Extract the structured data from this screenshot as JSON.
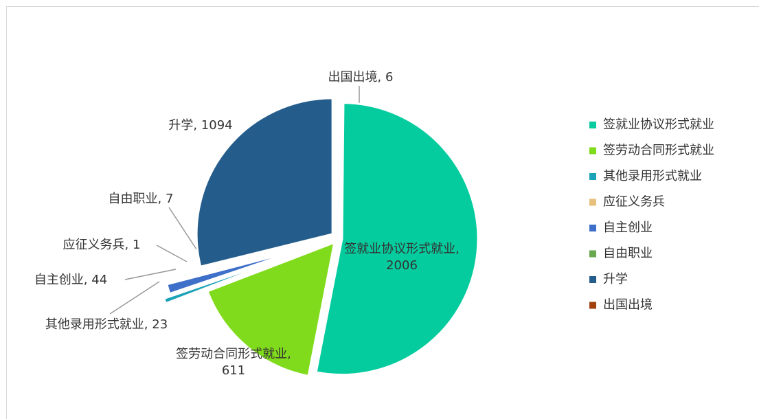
{
  "chart_data": {
    "type": "pie",
    "categories": [
      "签就业协议形式就业",
      "签劳动合同形式就业",
      "其他录用形式就业",
      "应征义务兵",
      "自主创业",
      "自由职业",
      "升学",
      "出国出境"
    ],
    "values": [
      2006,
      611,
      23,
      1,
      44,
      7,
      1094,
      6
    ],
    "value_labels": [
      "签就业协议形式就业, 2006",
      "签劳动合同形式就业, 611",
      "其他录用形式就业, 23",
      "应征义务兵, 1",
      "自主创业, 44",
      "自由职业, 7",
      "升学, 1094",
      "出国出境, 6"
    ],
    "colors": [
      "#05cc9e",
      "#80db1c",
      "#1aa2b6",
      "#e8c07d",
      "#3e6fc9",
      "#6aa84f",
      "#245d8c",
      "#a0410d"
    ],
    "legend": "right"
  }
}
